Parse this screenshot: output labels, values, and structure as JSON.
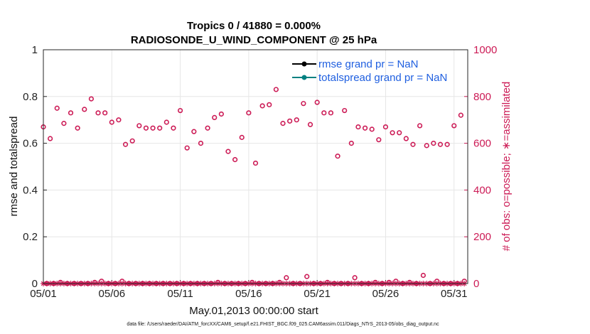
{
  "chart_data": {
    "type": "scatter",
    "title": "Tropics 0 / 41880 = 0.000%",
    "subtitle": "RADIOSONDE_U_WIND_COMPONENT @ 25 hPa",
    "xlabel": "May.01,2013 00:00:00 start",
    "ylabel": "rmse and totalspread",
    "ylabel_right": "# of obs: o=possible; ∗=assimilated",
    "x_tick_labels": [
      "05/01",
      "05/06",
      "05/11",
      "05/16",
      "05/21",
      "05/26",
      "05/31"
    ],
    "x_tick_days": [
      1,
      6,
      11,
      16,
      21,
      26,
      31
    ],
    "xlim": [
      1,
      32
    ],
    "ylim": [
      0,
      1
    ],
    "y_ticks": [
      "0",
      "0.2",
      "0.4",
      "0.6",
      "0.8",
      "1"
    ],
    "ylim_right": [
      0,
      1000
    ],
    "y_ticks_right": [
      "0",
      "200",
      "400",
      "600",
      "800",
      "1000"
    ],
    "grid": true,
    "legend_position": "top-right",
    "series": [
      {
        "name": "rmse grand pr = NaN",
        "color": "#000000",
        "marker": "filled-circle",
        "values": []
      },
      {
        "name": "totalspread grand pr = NaN",
        "color": "#008080",
        "marker": "filled-circle",
        "values": []
      }
    ],
    "obs_possible": {
      "color": "#cc1a55",
      "marker": "open-circle",
      "x": [
        1.0,
        1.25,
        1.5,
        1.75,
        2.0,
        2.25,
        2.5,
        2.75,
        3.0,
        3.25,
        3.5,
        3.75,
        4.0,
        4.25,
        4.5,
        4.75,
        5.0,
        5.25,
        5.5,
        5.75,
        6.0,
        6.25,
        6.5,
        6.75,
        7.0,
        7.25,
        7.5,
        7.75,
        8.0,
        8.25,
        8.5,
        8.75,
        9.0,
        9.25,
        9.5,
        9.75,
        10.0,
        10.25,
        10.5,
        10.75,
        11.0,
        11.25,
        11.5,
        11.75,
        12.0,
        12.25,
        12.5,
        12.75,
        13.0,
        13.25,
        13.5,
        13.75,
        14.0,
        14.25,
        14.5,
        14.75,
        15.0,
        15.25,
        15.5,
        15.75,
        16.0,
        16.25,
        16.5,
        16.75,
        17.0,
        17.25,
        17.5,
        17.75,
        18.0,
        18.25,
        18.5,
        18.75,
        19.0,
        19.25,
        19.5,
        19.75,
        20.0,
        20.25,
        20.5,
        20.75,
        21.0,
        21.25,
        21.5,
        21.75,
        22.0,
        22.25,
        22.5,
        22.75,
        23.0,
        23.25,
        23.5,
        23.75,
        24.0,
        24.25,
        24.5,
        24.75,
        25.0,
        25.25,
        25.5,
        25.75,
        26.0,
        26.25,
        26.5,
        26.75,
        27.0,
        27.25,
        27.5,
        27.75,
        28.0,
        28.25,
        28.5,
        28.75,
        29.0,
        29.25,
        29.5,
        29.75,
        30.0,
        30.25,
        30.5,
        30.75,
        31.0,
        31.25,
        31.5,
        31.75
      ],
      "values": [
        670,
        0,
        620,
        0,
        750,
        5,
        685,
        0,
        730,
        0,
        665,
        0,
        745,
        0,
        790,
        5,
        730,
        10,
        730,
        0,
        690,
        0,
        700,
        10,
        595,
        0,
        610,
        0,
        675,
        0,
        665,
        0,
        665,
        0,
        665,
        0,
        690,
        0,
        665,
        0,
        740,
        0,
        580,
        0,
        650,
        0,
        600,
        0,
        665,
        0,
        710,
        5,
        725,
        0,
        565,
        0,
        530,
        0,
        625,
        0,
        730,
        5,
        515,
        0,
        760,
        0,
        765,
        0,
        830,
        5,
        685,
        25,
        695,
        0,
        700,
        0,
        770,
        30,
        680,
        0,
        775,
        0,
        730,
        5,
        730,
        0,
        545,
        0,
        740,
        0,
        600,
        25,
        670,
        0,
        665,
        0,
        660,
        5,
        615,
        0,
        670,
        5,
        645,
        10,
        645,
        0,
        620,
        5,
        595,
        0,
        675,
        35,
        590,
        0,
        600,
        10,
        595,
        0,
        595,
        0,
        675,
        0,
        720,
        10
      ]
    },
    "obs_assimilated": {
      "color": "#cc1a55",
      "marker": "asterisk",
      "x": [
        1.0,
        1.25,
        1.5,
        1.75,
        2.0,
        2.25,
        2.5,
        2.75,
        3.0,
        3.25,
        3.5,
        3.75,
        4.0,
        4.25,
        4.5,
        4.75,
        5.0,
        5.25,
        5.5,
        5.75,
        6.0,
        6.25,
        6.5,
        6.75,
        7.0,
        7.25,
        7.5,
        7.75,
        8.0,
        8.25,
        8.5,
        8.75,
        9.0,
        9.25,
        9.5,
        9.75,
        10.0,
        10.25,
        10.5,
        10.75,
        11.0,
        11.25,
        11.5,
        11.75,
        12.0,
        12.25,
        12.5,
        12.75,
        13.0,
        13.25,
        13.5,
        13.75,
        14.0,
        14.25,
        14.5,
        14.75,
        15.0,
        15.25,
        15.5,
        15.75,
        16.0,
        16.25,
        16.5,
        16.75,
        17.0,
        17.25,
        17.5,
        17.75,
        18.0,
        18.25,
        18.5,
        18.75,
        19.0,
        19.25,
        19.5,
        19.75,
        20.0,
        20.25,
        20.5,
        20.75,
        21.0,
        21.25,
        21.5,
        21.75,
        22.0,
        22.25,
        22.5,
        22.75,
        23.0,
        23.25,
        23.5,
        23.75,
        24.0,
        24.25,
        24.5,
        24.75,
        25.0,
        25.25,
        25.5,
        25.75,
        26.0,
        26.25,
        26.5,
        26.75,
        27.0,
        27.25,
        27.5,
        27.75,
        28.0,
        28.25,
        28.5,
        28.75,
        29.0,
        29.25,
        29.5,
        29.75,
        30.0,
        30.25,
        30.5,
        30.75,
        31.0,
        31.25,
        31.5,
        31.75
      ],
      "values": [
        0,
        0,
        0,
        0,
        0,
        0,
        0,
        0,
        0,
        0,
        0,
        0,
        0,
        0,
        0,
        0,
        0,
        0,
        0,
        0,
        0,
        0,
        0,
        0,
        0,
        0,
        0,
        0,
        0,
        0,
        0,
        0,
        0,
        0,
        0,
        0,
        0,
        0,
        0,
        0,
        0,
        0,
        0,
        0,
        0,
        0,
        0,
        0,
        0,
        0,
        0,
        0,
        0,
        0,
        0,
        0,
        0,
        0,
        0,
        0,
        0,
        0,
        0,
        0,
        0,
        0,
        0,
        0,
        0,
        0,
        0,
        0,
        0,
        0,
        0,
        0,
        0,
        0,
        0,
        0,
        0,
        0,
        0,
        0,
        0,
        0,
        0,
        0,
        0,
        0,
        0,
        0,
        0,
        0,
        0,
        0,
        0,
        0,
        0,
        0,
        0,
        0,
        0,
        0,
        0,
        0,
        0,
        0,
        0,
        0,
        0,
        0,
        0,
        0,
        0,
        0,
        0,
        0,
        0,
        0,
        0,
        0,
        0,
        0
      ]
    },
    "footer": "data file: /Users/raeder/DAI/ATM_forcXX/CAM6_setup/f.e21.FHIST_BGC.f09_025.CAM6assim.011/Diags_NTrS_2013-05/obs_diag_output.nc"
  }
}
